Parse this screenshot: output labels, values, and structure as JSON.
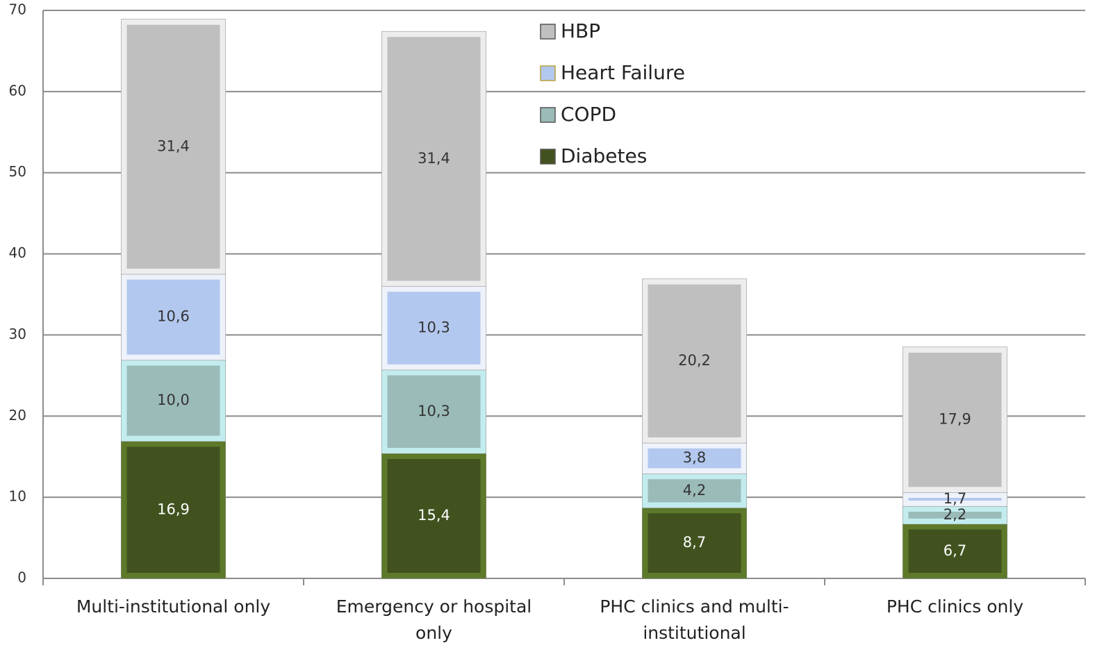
{
  "chart_data": {
    "type": "bar",
    "stacked": true,
    "categories": [
      "Multi-institutional only",
      "Emergency or hospital only",
      "PHC clinics and multi-institutional",
      "PHC clinics only"
    ],
    "series": [
      {
        "name": "Diabetes",
        "color": "#41521f",
        "edge": "#607d2a",
        "label_color": "#ffffff",
        "values": [
          16.9,
          15.4,
          8.7,
          6.7
        ],
        "value_labels": [
          "16,9",
          "15,4",
          "8,7",
          "6,7"
        ]
      },
      {
        "name": "COPD",
        "color": "#9bbbb8",
        "edge": "#c8f2f4",
        "label_color": "#333333",
        "values": [
          10.0,
          10.3,
          4.2,
          2.2
        ],
        "value_labels": [
          "10,0",
          "10,3",
          "4,2",
          "2,2"
        ]
      },
      {
        "name": "Heart Failure",
        "color": "#b3c8ef",
        "edge": "#f4f6fb",
        "label_color": "#333333",
        "values": [
          10.6,
          10.3,
          3.8,
          1.7
        ],
        "value_labels": [
          "10,6",
          "10,3",
          "3,8",
          "1,7"
        ]
      },
      {
        "name": "HBP",
        "color": "#bfbfbf",
        "edge": "#f2f2f2",
        "label_color": "#333333",
        "values": [
          31.4,
          31.4,
          20.2,
          17.9
        ],
        "value_labels": [
          "31,4",
          "31,4",
          "20,2",
          "17,9"
        ]
      }
    ],
    "ylim": [
      0,
      70
    ],
    "yticks": [
      0,
      10,
      20,
      30,
      40,
      50,
      60,
      70
    ],
    "grid": true,
    "legend": "top"
  }
}
